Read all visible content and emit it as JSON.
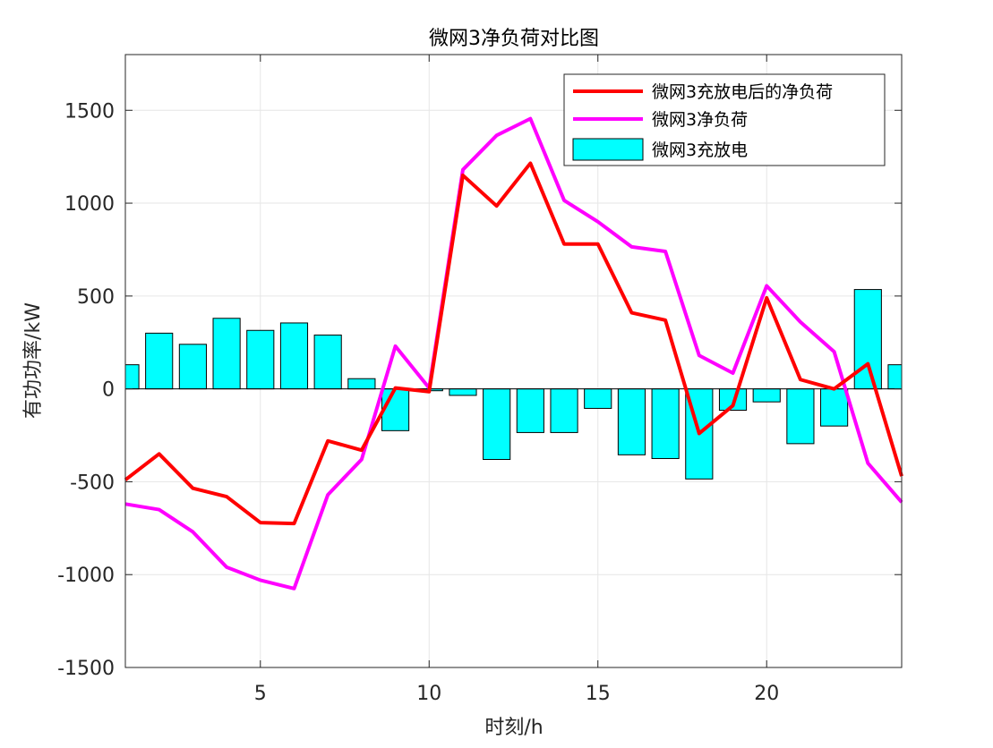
{
  "chart_data": {
    "type": "bar",
    "title": "微网3净负荷对比图",
    "xlabel": "时刻/h",
    "ylabel": "有功功率/kW",
    "xlim": [
      1,
      24
    ],
    "ylim": [
      -1500,
      1800
    ],
    "grid": true,
    "legend_position": "top-right",
    "x": [
      1,
      2,
      3,
      4,
      5,
      6,
      7,
      8,
      9,
      10,
      11,
      12,
      13,
      14,
      15,
      16,
      17,
      18,
      19,
      20,
      21,
      22,
      23,
      24
    ],
    "xticks": [
      5,
      10,
      15,
      20
    ],
    "yticks": [
      -1500,
      -1000,
      -500,
      0,
      500,
      1000,
      1500
    ],
    "series": [
      {
        "name": "微网3充放电后的净负荷",
        "kind": "line",
        "color": "#ff0000",
        "values": [
          -490,
          -350,
          -535,
          -580,
          -720,
          -725,
          -280,
          -330,
          5,
          -15,
          1150,
          985,
          1215,
          780,
          780,
          410,
          370,
          -240,
          -90,
          490,
          50,
          0,
          135,
          -470
        ]
      },
      {
        "name": "微网3净负荷",
        "kind": "line",
        "color": "#ff00ff",
        "values": [
          -620,
          -650,
          -770,
          -960,
          -1030,
          -1075,
          -570,
          -380,
          230,
          5,
          1180,
          1365,
          1455,
          1015,
          900,
          765,
          740,
          180,
          85,
          555,
          360,
          200,
          -400,
          -610
        ]
      },
      {
        "name": "微网3充放电",
        "kind": "bar",
        "color": "#00ffff",
        "values": [
          130,
          300,
          240,
          380,
          315,
          355,
          290,
          55,
          -225,
          -10,
          -35,
          -380,
          -235,
          -235,
          -105,
          -355,
          -375,
          -485,
          -115,
          -70,
          -295,
          -200,
          535,
          130
        ]
      }
    ]
  }
}
